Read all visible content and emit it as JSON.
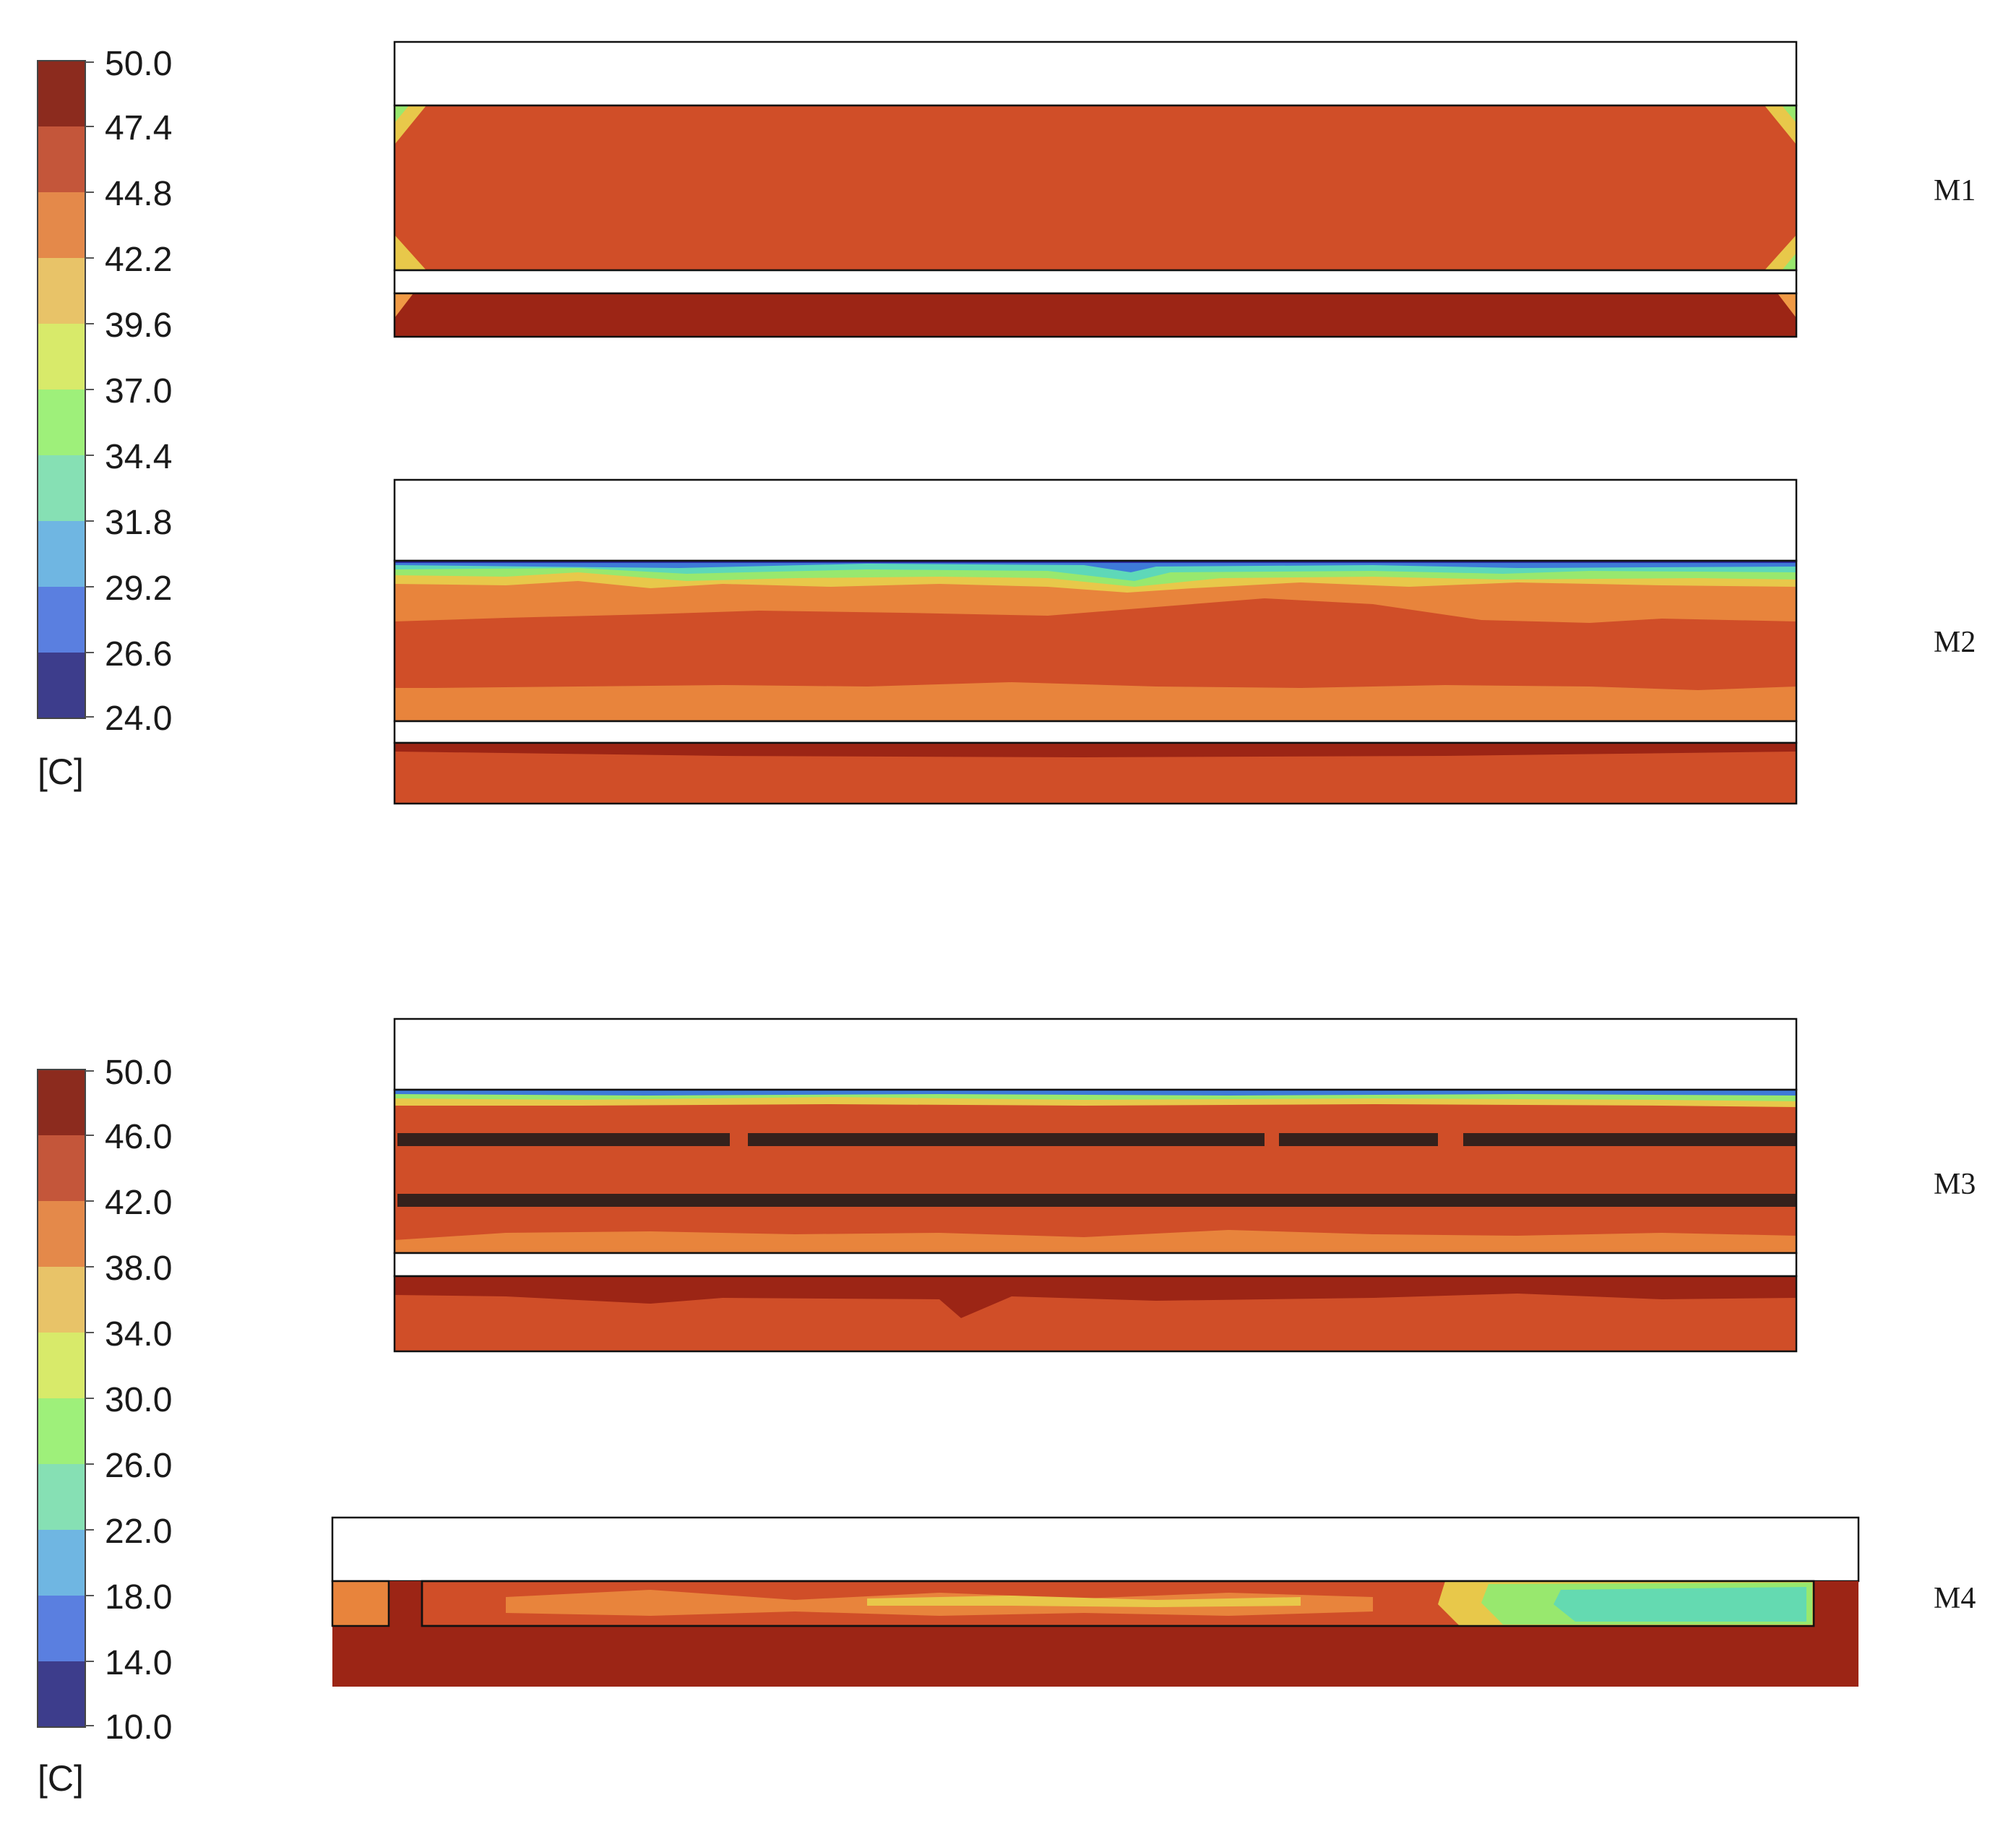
{
  "legends": [
    {
      "id": "legend-top",
      "ticks": [
        "50.0",
        "47.4",
        "44.8",
        "42.2",
        "39.6",
        "37.0",
        "34.4",
        "31.8",
        "29.2",
        "26.6",
        "24.0"
      ],
      "unit": "[C]",
      "range": [
        24.0,
        50.0
      ]
    },
    {
      "id": "legend-bottom",
      "ticks": [
        "50.0",
        "46.0",
        "42.0",
        "38.0",
        "34.0",
        "30.0",
        "26.0",
        "22.0",
        "18.0",
        "14.0",
        "10.0"
      ],
      "unit": "[C]",
      "range": [
        10.0,
        50.0
      ]
    }
  ],
  "colors": {
    "bands_top_to_bottom": [
      "#8c2b1e",
      "#c4563a",
      "#e4894a",
      "#e8c368",
      "#d8ea6a",
      "#9ef07a",
      "#86e0b4",
      "#6fb6e2",
      "#5a7fe0",
      "#3d3d8c"
    ],
    "dark_red": "#9c2515",
    "red_orange": "#d04e28",
    "orange": "#e8843c",
    "light_orange": "#f09a45",
    "yellow": "#e8c84a",
    "green": "#98e86e",
    "cyan": "#5ed8b8",
    "blue": "#3e7ad8",
    "navy": "#2a2aa0"
  },
  "models": [
    {
      "id": "m1",
      "label": "M1"
    },
    {
      "id": "m2",
      "label": "M2"
    },
    {
      "id": "m3",
      "label": "M3"
    },
    {
      "id": "m4",
      "label": "M4"
    }
  ]
}
